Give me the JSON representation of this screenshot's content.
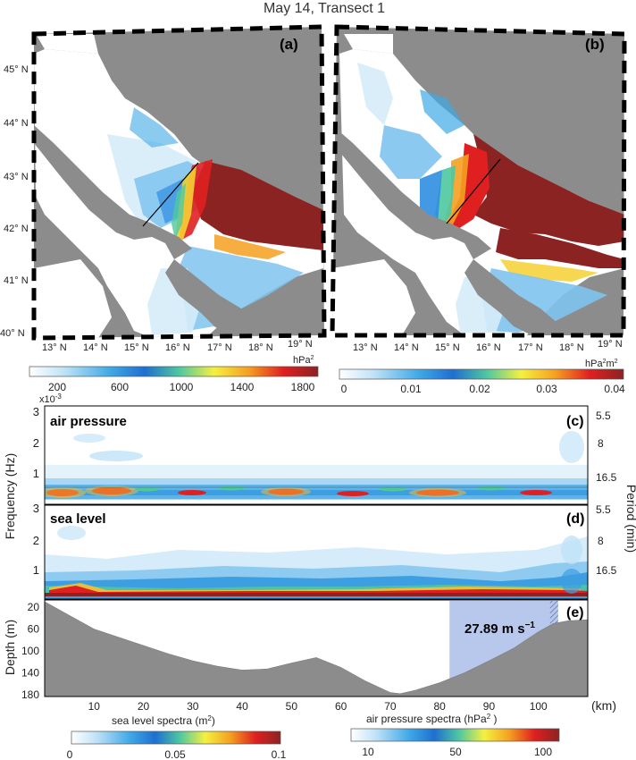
{
  "title": "May 14, Transect 1",
  "maps": {
    "lat_labels": [
      "45° N",
      "44° N",
      "43° N",
      "42° N",
      "41° N",
      "40° N"
    ],
    "lon_labels": [
      "13° N",
      "14° N",
      "15° N",
      "16° N",
      "17° N",
      "18° N",
      "19° N"
    ],
    "panel_a": {
      "label": "(a)",
      "unit": "hPa²",
      "unit_main": "hPa",
      "unit_sup": "2",
      "ticks": [
        "200",
        "600",
        "1000",
        "1400",
        "1800"
      ]
    },
    "panel_b": {
      "label": "(b)",
      "unit": "hPa²m²",
      "unit_main1": "hPa",
      "unit_sup1": "2",
      "unit_main2": "m",
      "unit_sup2": "2",
      "ticks": [
        "0",
        "0.01",
        "0.02",
        "0.03",
        "0.04"
      ]
    }
  },
  "panel_c": {
    "label": "(c)",
    "title": "air pressure"
  },
  "panel_d": {
    "label": "(d)",
    "title": "sea level"
  },
  "panel_e": {
    "label": "(e)",
    "annotation": "27.89 m s⁻¹",
    "annotation_main": "27.89 m s",
    "annotation_sup": "−1"
  },
  "axes": {
    "freq_label": "Frequency (Hz)",
    "freq_multiplier": "x10",
    "freq_multiplier_exp": "-3",
    "period_label": "Period (min)",
    "depth_label": "Depth (m)",
    "km_label": "(km)"
  },
  "bottom_colorbars": {
    "sea_level": {
      "label": "sea level spectra (m²)",
      "label_main": "sea level spectra (m",
      "label_sup": "2",
      "label_end": ")",
      "ticks": [
        "0",
        "0.05",
        "0.1"
      ]
    },
    "air_pressure": {
      "label": "air pressure spectra (hPa² )",
      "label_main": "air pressure spectra (hPa",
      "label_sup": "2",
      "label_end": " )",
      "ticks": [
        "10",
        "50",
        "100"
      ]
    }
  },
  "colors": {
    "land": "#8c8c8c",
    "bathymetry": "#8c8c8c",
    "wind_box": "#b8c7ec",
    "colormap": [
      "#ffffff",
      "#bfe2f7",
      "#3fa9e6",
      "#1f6fd0",
      "#4fc8a0",
      "#f5f040",
      "#f5a020",
      "#e02020",
      "#8b2323"
    ]
  },
  "chart_data": [
    {
      "type": "heatmap",
      "title": "air pressure",
      "ylabel": "Frequency (Hz)",
      "y2label": "Period (min)",
      "yticks": [
        1,
        2,
        3
      ],
      "y2ticks": [
        "5.5",
        "8",
        "16.5"
      ],
      "ylim": [
        0,
        3
      ],
      "y_multiplier": "x10^-3",
      "xlim": [
        0,
        110
      ]
    },
    {
      "type": "heatmap",
      "title": "sea level",
      "ylabel": "Frequency (Hz)",
      "y2label": "Period (min)",
      "yticks": [
        1,
        2,
        3
      ],
      "y2ticks": [
        "5.5",
        "8",
        "16.5"
      ],
      "ylim": [
        0,
        3
      ],
      "xlim": [
        0,
        110
      ]
    },
    {
      "type": "area",
      "ylabel": "Depth (m)",
      "xlabel": "(km)",
      "xticks": [
        10,
        20,
        30,
        40,
        50,
        60,
        70,
        80,
        90,
        100
      ],
      "yticks": [
        20,
        60,
        100,
        140,
        180
      ],
      "xlim": [
        0,
        110
      ],
      "ylim": [
        0,
        180
      ],
      "x": [
        0,
        5,
        10,
        15,
        20,
        25,
        30,
        35,
        40,
        45,
        50,
        55,
        60,
        65,
        70,
        72,
        75,
        80,
        85,
        90,
        95,
        100,
        103,
        106,
        110
      ],
      "depth": [
        10,
        35,
        60,
        75,
        90,
        105,
        118,
        128,
        135,
        133,
        122,
        112,
        130,
        155,
        176,
        178,
        172,
        158,
        140,
        118,
        95,
        65,
        50,
        45,
        43
      ],
      "wind_speed_box": {
        "x_start": 82,
        "x_end": 104
      }
    }
  ]
}
